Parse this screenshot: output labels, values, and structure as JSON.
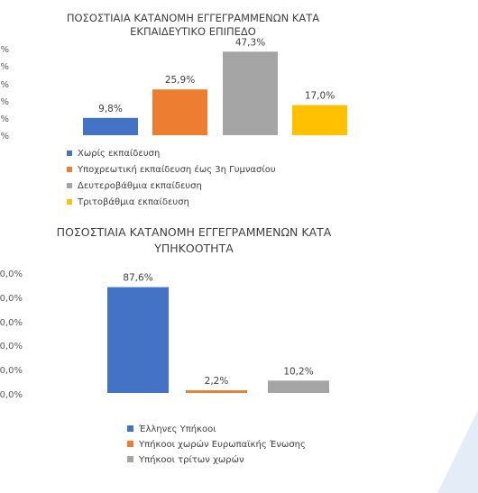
{
  "colors": {
    "blue": "#4472C4",
    "orange": "#ED7D31",
    "gray": "#A5A5A5",
    "yellow": "#FFC000",
    "decor": "#E3ECF7"
  },
  "chart_data": [
    {
      "type": "bar",
      "title": "ΠΟΣΟΣΤΙΑΙΑ ΚΑΤΑΝΟΜΗ ΕΓΓΕΓΡΑΜΜΕΝΩΝ ΚΑΤΑ ΕΚΠΑΙΔΕΥΤΙΚΟ ΕΠΙΠΕΔΟ",
      "title_lines": [
        "ΠΟΣΟΣΤΙΑΙΑ ΚΑΤΑΝΟΜΗ ΕΓΓΕΓΡΑΜΜΕΝΩΝ ΚΑΤΑ",
        "ΕΚΠΑΙΔΕΥΤΙΚΟ ΕΠΙΠΕΔΟ"
      ],
      "ylim": [
        0,
        50
      ],
      "yticks": [
        "%",
        "%",
        "%",
        "%",
        "%",
        "%"
      ],
      "series": [
        {
          "name": "Χωρίς εκπαίδευση",
          "values": [
            9.8
          ],
          "label": "9,8%",
          "color": "#4472C4"
        },
        {
          "name": "Υποχρεωτική εκπαίδευση έως 3η Γυμνασίου",
          "values": [
            25.9
          ],
          "label": "25,9%",
          "color": "#ED7D31"
        },
        {
          "name": "Δευτεροβάθμια εκπαίδευση",
          "values": [
            47.3
          ],
          "label": "47,3%",
          "color": "#A5A5A5"
        },
        {
          "name": "Τριτοβάθμια εκπαίδευση",
          "values": [
            17.0
          ],
          "label": "17,0%",
          "color": "#FFC000"
        }
      ],
      "legend_position": "bottom"
    },
    {
      "type": "bar",
      "title": "ΠΟΣΟΣΤΙΑΙΑ ΚΑΤΑΝΟΜΗ ΕΓΓΕΓΡΑΜΜΕΝΩΝ ΚΑΤΑ ΥΠΗΚΟΟΤΗΤΑ",
      "title_lines": [
        "ΠΟΣΟΣΤΙΑΙΑ ΚΑΤΑΝΟΜΗ  ΕΓΓΕΓΡΑΜΜΕΝΩΝ ΚΑΤΑ",
        "ΥΠΗΚΟΟΤΗΤΑ"
      ],
      "ylim": [
        0,
        100
      ],
      "yticks": [
        "0,0%",
        "0,0%",
        "0,0%",
        "0,0%",
        "0,0%",
        "0,0%"
      ],
      "series": [
        {
          "name": "Έλληνες Υπήκοοι",
          "values": [
            87.6
          ],
          "label": "87,6%",
          "color": "#4472C4"
        },
        {
          "name": "Υπήκοοι χωρών Ευρωπαϊκής Ένωσης",
          "values": [
            2.2
          ],
          "label": "2,2%",
          "color": "#ED7D31"
        },
        {
          "name": "Υπήκοοι τρίτων χωρών",
          "values": [
            10.2
          ],
          "label": "10,2%",
          "color": "#A5A5A5"
        }
      ],
      "legend_position": "bottom"
    }
  ]
}
